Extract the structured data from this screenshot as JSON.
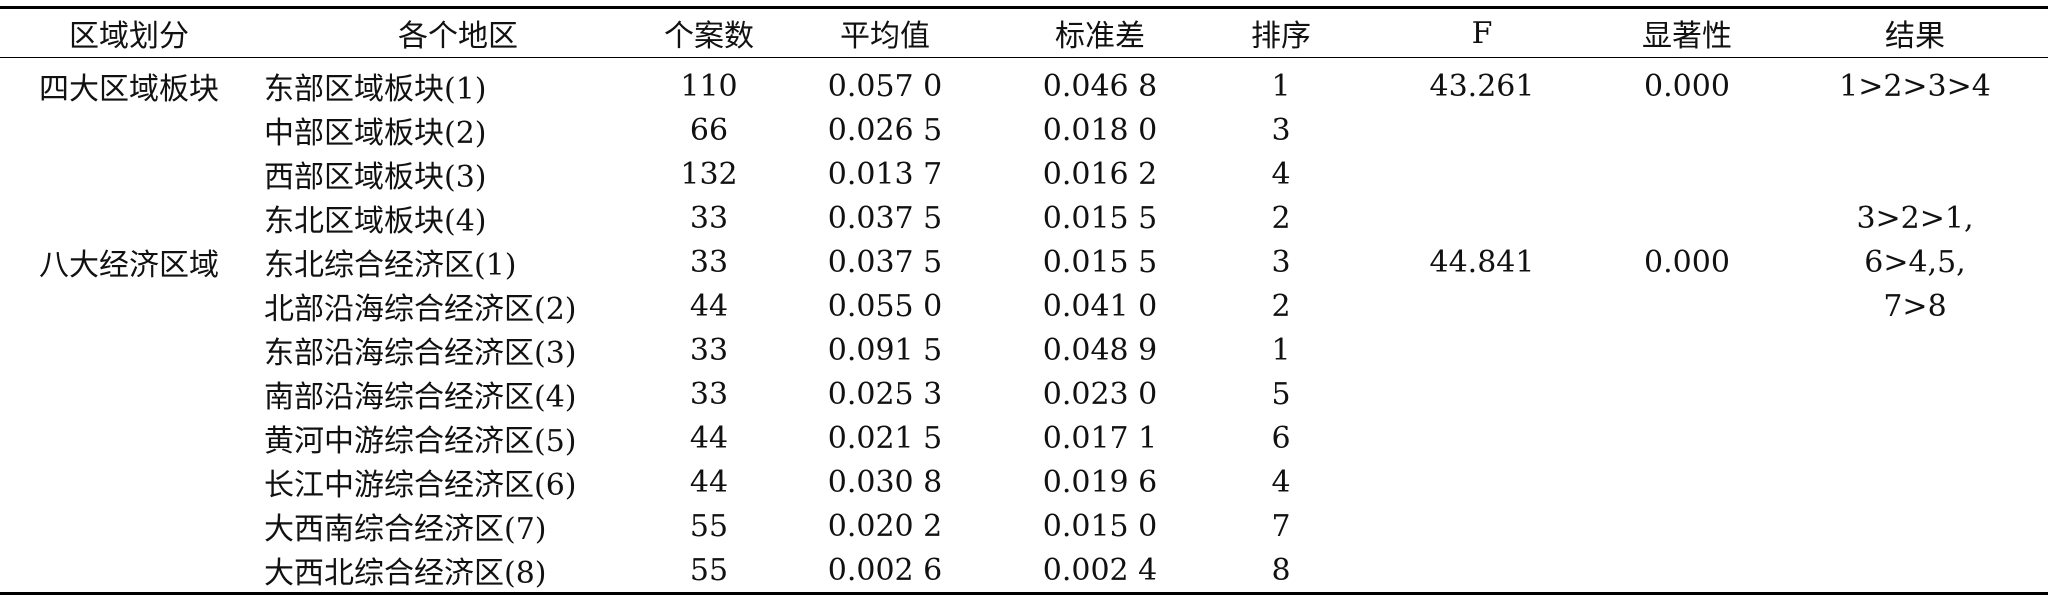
{
  "header": {
    "group": "区域划分",
    "region": "各个地区",
    "count": "个案数",
    "mean": "平均值",
    "std": "标准差",
    "rank": "排序",
    "f": "F",
    "sig": "显著性",
    "result": "结果"
  },
  "rows": [
    {
      "group": "四大区域板块",
      "region": "东部区域板块(1)",
      "count": "110",
      "mean": "0.057 0",
      "std": "0.046 8",
      "rank": "1",
      "f": "43.261",
      "sig": "0.000",
      "result": "1>2>3>4"
    },
    {
      "group": "",
      "region": "中部区域板块(2)",
      "count": "66",
      "mean": "0.026 5",
      "std": "0.018 0",
      "rank": "3",
      "f": "",
      "sig": "",
      "result": ""
    },
    {
      "group": "",
      "region": "西部区域板块(3)",
      "count": "132",
      "mean": "0.013 7",
      "std": "0.016 2",
      "rank": "4",
      "f": "",
      "sig": "",
      "result": ""
    },
    {
      "group": "",
      "region": "东北区域板块(4)",
      "count": "33",
      "mean": "0.037 5",
      "std": "0.015 5",
      "rank": "2",
      "f": "",
      "sig": "",
      "result": "3>2>1,"
    },
    {
      "group": "八大经济区域",
      "region": "东北综合经济区(1)",
      "count": "33",
      "mean": "0.037 5",
      "std": "0.015 5",
      "rank": "3",
      "f": "44.841",
      "sig": "0.000",
      "result": "6>4,5,"
    },
    {
      "group": "",
      "region": "北部沿海综合经济区(2)",
      "count": "44",
      "mean": "0.055 0",
      "std": "0.041 0",
      "rank": "2",
      "f": "",
      "sig": "",
      "result": "7>8"
    },
    {
      "group": "",
      "region": "东部沿海综合经济区(3)",
      "count": "33",
      "mean": "0.091 5",
      "std": "0.048 9",
      "rank": "1",
      "f": "",
      "sig": "",
      "result": ""
    },
    {
      "group": "",
      "region": "南部沿海综合经济区(4)",
      "count": "33",
      "mean": "0.025 3",
      "std": "0.023 0",
      "rank": "5",
      "f": "",
      "sig": "",
      "result": ""
    },
    {
      "group": "",
      "region": "黄河中游综合经济区(5)",
      "count": "44",
      "mean": "0.021 5",
      "std": "0.017 1",
      "rank": "6",
      "f": "",
      "sig": "",
      "result": ""
    },
    {
      "group": "",
      "region": "长江中游综合经济区(6)",
      "count": "44",
      "mean": "0.030 8",
      "std": "0.019 6",
      "rank": "4",
      "f": "",
      "sig": "",
      "result": ""
    },
    {
      "group": "",
      "region": "大西南综合经济区(7)",
      "count": "55",
      "mean": "0.020 2",
      "std": "0.015 0",
      "rank": "7",
      "f": "",
      "sig": "",
      "result": ""
    },
    {
      "group": "",
      "region": "大西北综合经济区(8)",
      "count": "55",
      "mean": "0.002 6",
      "std": "0.002 4",
      "rank": "8",
      "f": "",
      "sig": "",
      "result": ""
    }
  ]
}
